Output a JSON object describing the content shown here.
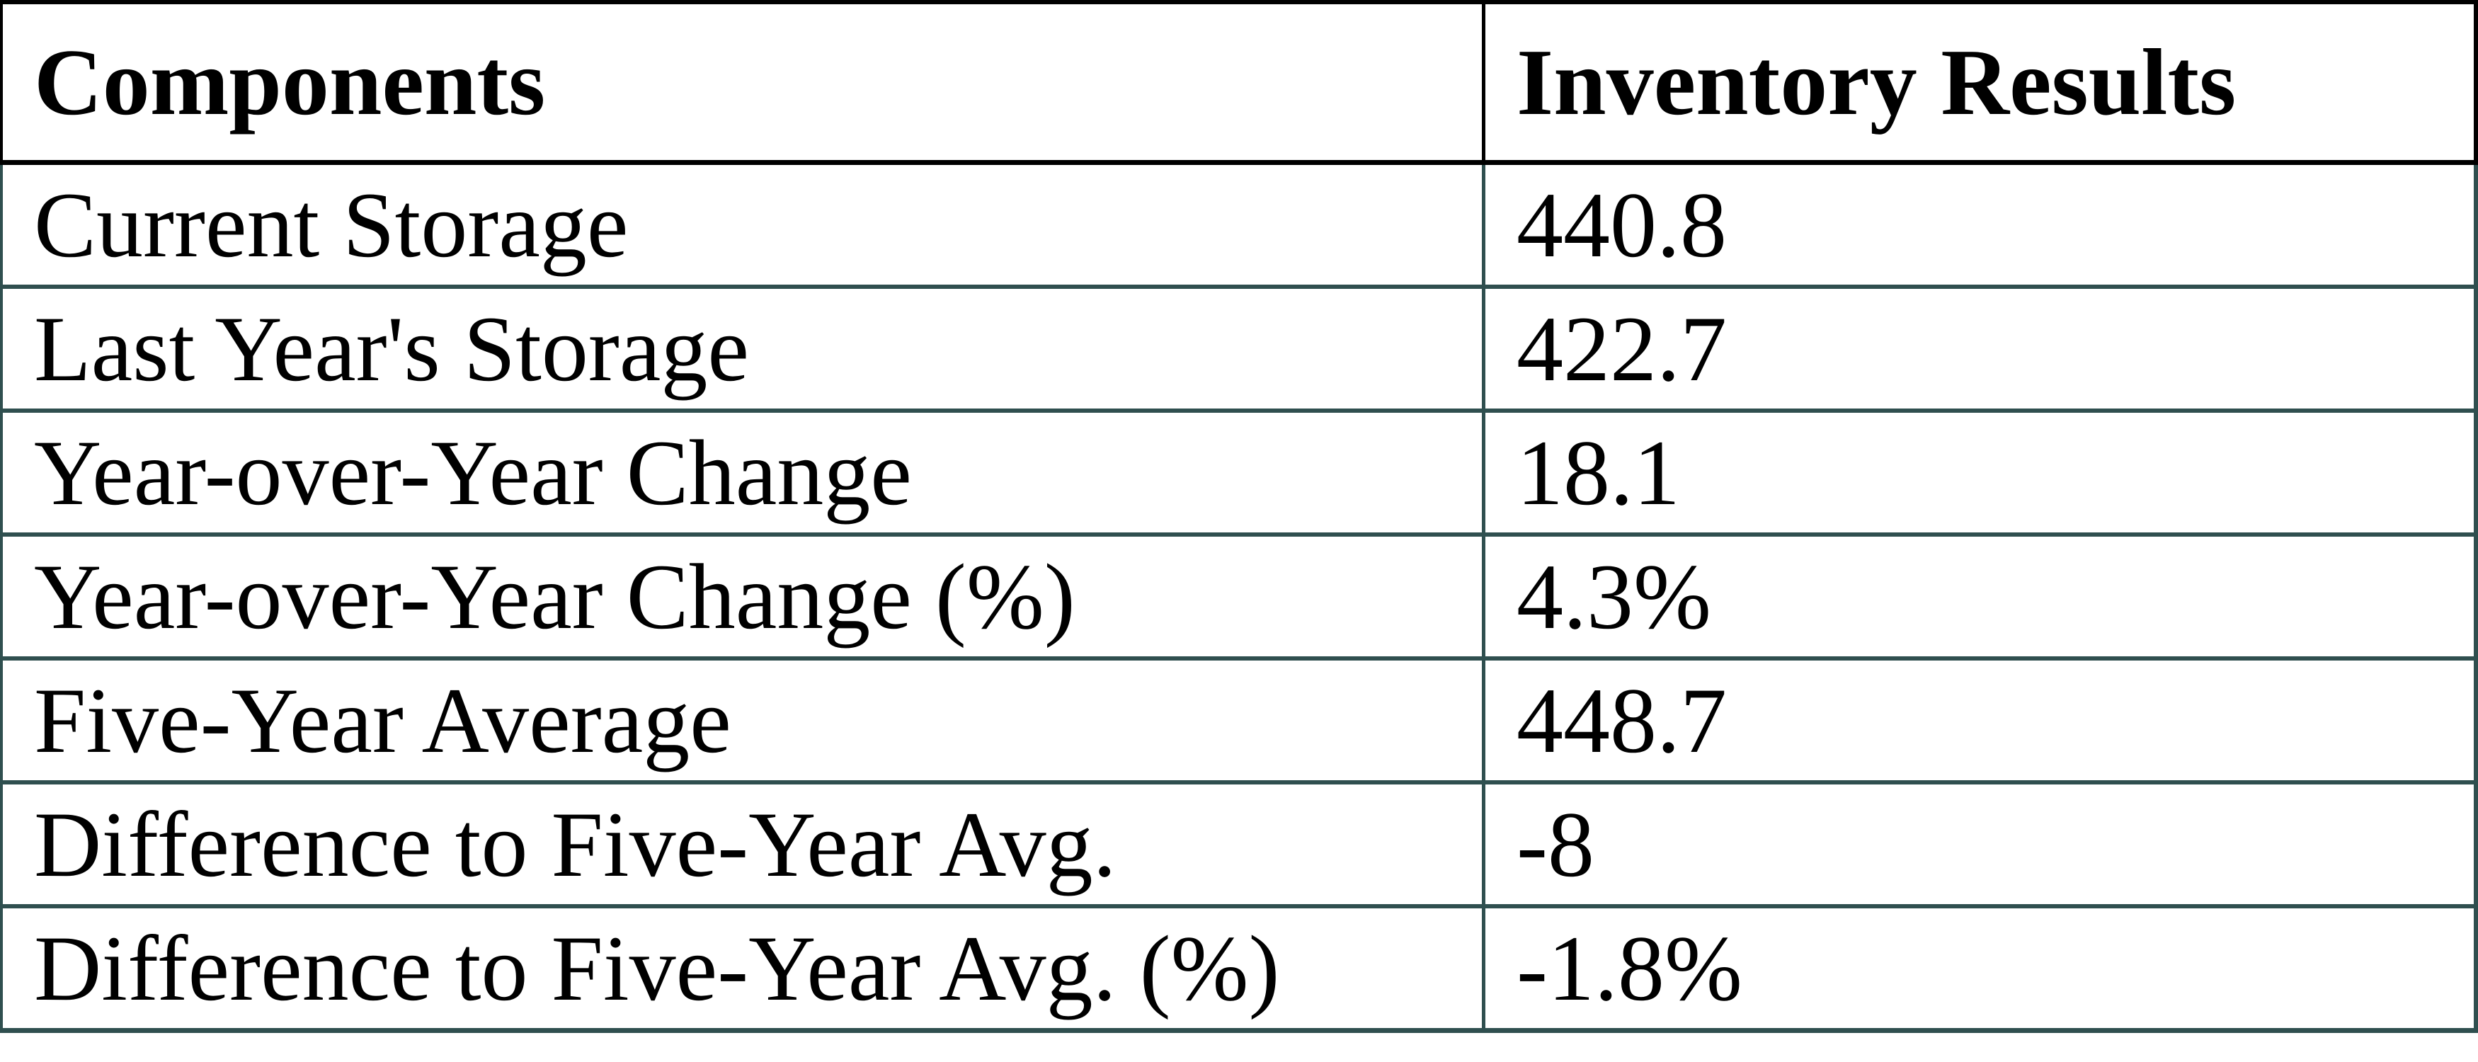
{
  "table": {
    "columns": [
      {
        "label": "Components"
      },
      {
        "label": "Inventory Results"
      }
    ],
    "rows": [
      {
        "label": "Current Storage",
        "value": "440.8"
      },
      {
        "label": "Last Year's Storage",
        "value": "422.7"
      },
      {
        "label": "Year-over-Year Change",
        "value": "18.1"
      },
      {
        "label": "Year-over-Year Change (%)",
        "value": "4.3%"
      },
      {
        "label": "Five-Year Average",
        "value": "448.7"
      },
      {
        "label": "Difference to Five-Year Avg.",
        "value": "-8"
      },
      {
        "label": "Difference to Five-Year Avg. (%)",
        "value": "-1.8%"
      }
    ],
    "colors": {
      "header_border": "#000000",
      "body_border": "#2f4f4f",
      "text": "#000000",
      "background": "#ffffff"
    }
  },
  "chart_data": {
    "type": "table",
    "title": "",
    "columns": [
      "Components",
      "Inventory Results"
    ],
    "categories": [
      "Current Storage",
      "Last Year's Storage",
      "Year-over-Year Change",
      "Year-over-Year Change (%)",
      "Five-Year Average",
      "Difference to Five-Year Avg.",
      "Difference to Five-Year Avg. (%)"
    ],
    "values": [
      440.8,
      422.7,
      18.1,
      "4.3%",
      448.7,
      -8,
      "-1.8%"
    ],
    "layout_hints": {
      "header_style": "bold serif, black borders",
      "body_style": "serif, dark-slate-gray borders",
      "grid": "on"
    }
  }
}
